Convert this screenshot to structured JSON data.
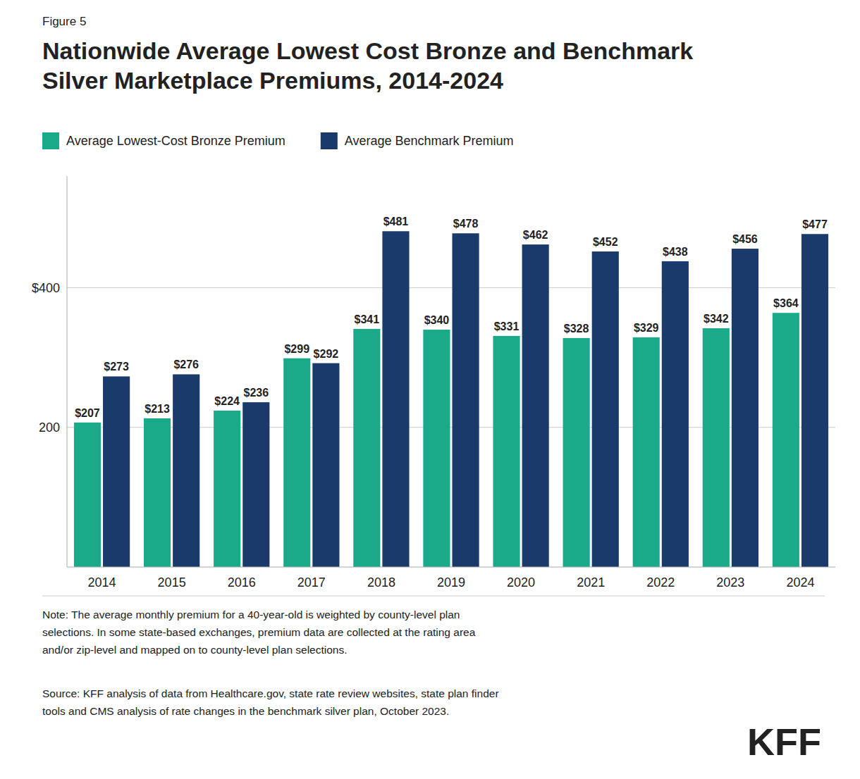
{
  "chart_data": {
    "type": "bar",
    "title": "Nationwide Average Lowest Cost Bronze and Benchmark\nSilver Marketplace Premiums, 2014-2024",
    "annotations": [
      "Figure 5",
      "Note: The average monthly premium for a 40-year-old is weighted by county-level plan\nselections. In some state-based exchanges, premium data are collected at the rating area\nand/or zip-level and mapped on to county-level plan selections.",
      "Source: KFF analysis of data from Healthcare.gov, state rate review websites, state plan finder\ntools and CMS analysis of rate changes in the benchmark silver plan, October 2023.",
      "KFF"
    ],
    "categories": [
      "2014",
      "2015",
      "2016",
      "2017",
      "2018",
      "2019",
      "2020",
      "2021",
      "2022",
      "2023",
      "2024"
    ],
    "series": [
      {
        "name": "Average Lowest-Cost Bronze Premium",
        "color": "#1aaa8a",
        "values": [
          207,
          213,
          224,
          299,
          341,
          340,
          331,
          328,
          329,
          342,
          364
        ],
        "value_labels": [
          "$207",
          "$213",
          "$224",
          "$299",
          "$341",
          "$340",
          "$331",
          "$328",
          "$329",
          "$342",
          "$364"
        ]
      },
      {
        "name": "Average Benchmark Premium",
        "color": "#1a3a6b",
        "values": [
          273,
          276,
          236,
          292,
          481,
          478,
          462,
          452,
          438,
          456,
          477
        ],
        "value_labels": [
          "$273",
          "$276",
          "$236",
          "$292",
          "$481",
          "$478",
          "$462",
          "$452",
          "$438",
          "$456",
          "$477"
        ]
      }
    ],
    "ylim": [
      0,
      560
    ],
    "yticks": [
      200,
      {
        "value": 400,
        "label": "$400"
      }
    ],
    "grid": true,
    "legend": "upper left",
    "data_labels": true
  }
}
